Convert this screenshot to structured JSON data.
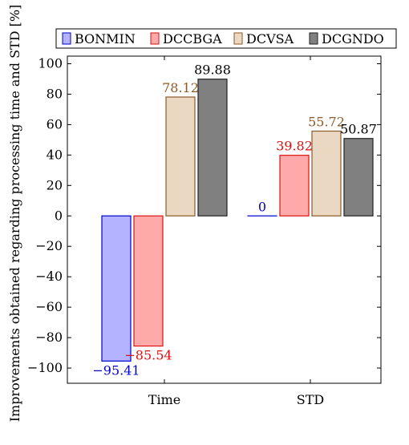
{
  "chart_data": {
    "type": "bar",
    "title": "",
    "xlabel": "",
    "ylabel": "Improvements obtained regarding processing time and STD [%]",
    "categories": [
      "Time",
      "STD"
    ],
    "ylim": [
      -110,
      105
    ],
    "yticks": [
      -100,
      -80,
      -60,
      -40,
      -20,
      0,
      20,
      40,
      60,
      80,
      100
    ],
    "ytick_labels": [
      "−100",
      "−80",
      "−60",
      "−40",
      "−20",
      "0",
      "20",
      "40",
      "60",
      "80",
      "100"
    ],
    "grid": false,
    "legend_position": "top",
    "series": [
      {
        "name": "BONMIN",
        "values": [
          -95.41,
          0
        ],
        "labels": [
          "−95.41",
          "0"
        ],
        "color": "#b3b3ff",
        "edge": "#0000cc",
        "label_color": "#0000cc"
      },
      {
        "name": "DCCBGA",
        "values": [
          -85.54,
          39.82
        ],
        "labels": [
          "−85.54",
          "39.82"
        ],
        "color": "#ffaaaa",
        "edge": "#dd1111",
        "label_color": "#dd1111"
      },
      {
        "name": "DCVSA",
        "values": [
          78.12,
          55.72
        ],
        "labels": [
          "78.12",
          "55.72"
        ],
        "color": "#ead8c2",
        "edge": "#8b5a2b",
        "label_color": "#8b5a2b"
      },
      {
        "name": "DCGNDO",
        "values": [
          89.88,
          50.87
        ],
        "labels": [
          "89.88",
          "50.87"
        ],
        "color": "#808080",
        "edge": "#222222",
        "label_color": "#000000"
      }
    ]
  }
}
